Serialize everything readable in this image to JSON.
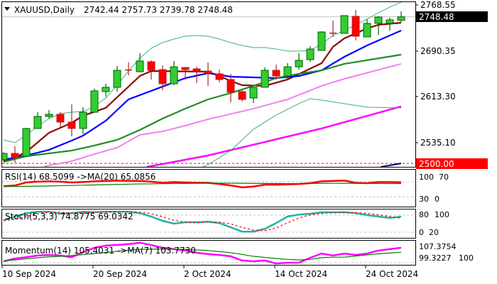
{
  "header": {
    "menu_icon": "triangle-down-icon",
    "title": "XAUUSD,Daily",
    "ohlc": "2742.44 2757.73 2739.78 2748.48"
  },
  "price_axis": {
    "ticks": [
      "2768.55",
      "2690.35",
      "2613.30",
      "2535.10"
    ],
    "current_price": "2748.48",
    "level_price": "2500.00"
  },
  "colors": {
    "bull": "#32CD32",
    "bear": "#FF0000",
    "ma_fast": "#8B0000",
    "ma_blue": "#0000FF",
    "ma_green": "#228B22",
    "ma_violet": "#EE82EE",
    "ma_magenta": "#FF00FF",
    "band": "#3CB371",
    "rsi": "#FF0000",
    "rsi_ma": "#008000",
    "stoch_main": "#20B2AA",
    "stoch_signal": "#FF0000",
    "momentum": "#FF00FF",
    "momentum_ma": "#008000",
    "level_line": "#FF0000"
  },
  "x_axis": {
    "labels": [
      {
        "bar": 0,
        "text": "10 Sep 2024"
      },
      {
        "bar": 8,
        "text": "20 Sep 2024"
      },
      {
        "bar": 16,
        "text": "2 Oct 2024"
      },
      {
        "bar": 24,
        "text": "14 Oct 2024"
      },
      {
        "bar": 32,
        "text": "24 Oct 2024"
      }
    ]
  },
  "chart_data": [
    {
      "type": "candlestick",
      "title": "XAUUSD,Daily",
      "ylim": [
        2490,
        2777
      ],
      "horizontal_levels": [
        2748.48,
        2500.0
      ],
      "ohlc": [
        [
          2506.2,
          2519.0,
          2504.0,
          2517.0
        ],
        [
          2517.0,
          2529.1,
          2501.4,
          2509.8
        ],
        [
          2512.2,
          2560.4,
          2511.0,
          2559.2
        ],
        [
          2559.2,
          2586.8,
          2559.0,
          2579.6
        ],
        [
          2579.6,
          2590.4,
          2576.0,
          2583.2
        ],
        [
          2583.2,
          2586.8,
          2560.4,
          2570.0
        ],
        [
          2570.0,
          2600.1,
          2545.9,
          2559.2
        ],
        [
          2559.2,
          2595.3,
          2549.6,
          2586.8
        ],
        [
          2586.8,
          2626.6,
          2586.0,
          2622.9
        ],
        [
          2621.7,
          2635.0,
          2613.3,
          2629.0
        ],
        [
          2629.0,
          2665.1,
          2621.7,
          2657.8
        ],
        [
          2658.2,
          2671.1,
          2649.4,
          2657.6
        ],
        [
          2655.4,
          2686.7,
          2655.0,
          2673.5
        ],
        [
          2672.3,
          2674.7,
          2642.2,
          2657.8
        ],
        [
          2659.0,
          2666.3,
          2624.1,
          2635.0
        ],
        [
          2635.0,
          2673.5,
          2632.6,
          2663.8
        ],
        [
          2662.6,
          2663.5,
          2642.2,
          2659.0
        ],
        [
          2660.2,
          2663.8,
          2636.2,
          2655.4
        ],
        [
          2656.6,
          2671.1,
          2631.4,
          2653.0
        ],
        [
          2651.8,
          2659.0,
          2637.4,
          2642.2
        ],
        [
          2642.2,
          2651.8,
          2603.7,
          2620.6
        ],
        [
          2621.7,
          2624.1,
          2604.9,
          2608.5
        ],
        [
          2610.9,
          2629.5,
          2602.5,
          2629.0
        ],
        [
          2629.0,
          2662.6,
          2628.5,
          2657.8
        ],
        [
          2657.8,
          2667.5,
          2642.2,
          2648.2
        ],
        [
          2648.2,
          2669.9,
          2642.2,
          2663.8
        ],
        [
          2663.8,
          2686.7,
          2659.0,
          2674.7
        ],
        [
          2675.9,
          2698.7,
          2672.3,
          2693.9
        ],
        [
          2691.5,
          2724.0,
          2691.0,
          2722.8
        ],
        [
          2720.8,
          2742.1,
          2714.4,
          2720.4
        ],
        [
          2720.4,
          2750.8,
          2720.0,
          2750.5
        ],
        [
          2749.3,
          2760.1,
          2708.4,
          2715.6
        ],
        [
          2714.4,
          2744.5,
          2714.0,
          2737.3
        ],
        [
          2737.3,
          2749.3,
          2718.0,
          2748.1
        ],
        [
          2737.3,
          2746.9,
          2725.2,
          2743.3
        ],
        [
          2742.44,
          2757.73,
          2739.78,
          2748.48
        ]
      ],
      "overlays": [
        {
          "color_key": "ma_fast",
          "width": 2.2,
          "points": [
            [
              0,
              2505
            ],
            [
              1,
              2509.8
            ],
            [
              2,
              2519.4
            ],
            [
              4,
              2551.9
            ],
            [
              6,
              2568.8
            ],
            [
              7,
              2580.8
            ],
            [
              9,
              2594.1
            ],
            [
              10,
              2612.1
            ],
            [
              12,
              2648.2
            ],
            [
              13,
              2656.6
            ],
            [
              18,
              2655.4
            ],
            [
              19,
              2648.2
            ],
            [
              20,
              2639.8
            ],
            [
              21,
              2632.6
            ],
            [
              23,
              2631.4
            ],
            [
              25,
              2642.2
            ],
            [
              28,
              2669.9
            ],
            [
              29,
              2697.5
            ],
            [
              30,
              2712
            ],
            [
              32,
              2728.8
            ],
            [
              33,
              2734.9
            ],
            [
              35,
              2738.5
            ]
          ]
        },
        {
          "color_key": "ma_blue",
          "width": 2.2,
          "points": [
            [
              0,
              2506.2
            ],
            [
              2,
              2513.4
            ],
            [
              4,
              2523
            ],
            [
              6,
              2538.7
            ],
            [
              7,
              2547.1
            ],
            [
              9,
              2572.4
            ],
            [
              11,
              2608.5
            ],
            [
              14,
              2630.2
            ],
            [
              16,
              2644.6
            ],
            [
              18,
              2653
            ],
            [
              20,
              2647
            ],
            [
              24,
              2644.6
            ],
            [
              26,
              2648.2
            ],
            [
              28,
              2657.8
            ],
            [
              30,
              2680.7
            ],
            [
              32,
              2699.9
            ],
            [
              35,
              2725.2
            ]
          ]
        },
        {
          "color_key": "ma_green",
          "width": 2.2,
          "points": [
            [
              0,
              2502.6
            ],
            [
              2,
              2512.2
            ],
            [
              6,
              2521.8
            ],
            [
              8,
              2530.3
            ],
            [
              10,
              2539.9
            ],
            [
              12,
              2556.8
            ],
            [
              14,
              2576
            ],
            [
              16,
              2592.8
            ],
            [
              18,
              2608.5
            ],
            [
              20,
              2619.3
            ],
            [
              22,
              2631.4
            ],
            [
              24,
              2644.6
            ],
            [
              26,
              2651.8
            ],
            [
              28,
              2657.8
            ],
            [
              30,
              2668.7
            ],
            [
              35,
              2684.3
            ]
          ]
        },
        {
          "color_key": "ma_violet",
          "width": 2,
          "points": [
            [
              3.6,
              2495
            ],
            [
              6,
              2503.8
            ],
            [
              8,
              2515.8
            ],
            [
              10,
              2526.7
            ],
            [
              12,
              2548.3
            ],
            [
              14,
              2554.3
            ],
            [
              16,
              2564
            ],
            [
              18,
              2574.8
            ],
            [
              22,
              2592.8
            ],
            [
              25,
              2608.5
            ],
            [
              28,
              2631.4
            ],
            [
              30,
              2643.4
            ],
            [
              35,
              2668.7
            ]
          ]
        },
        {
          "color_key": "ma_magenta",
          "width": 2.5,
          "points": [
            [
              12.6,
              2494
            ],
            [
              18,
              2513.4
            ],
            [
              28,
              2559.2
            ],
            [
              35,
              2596.5
            ]
          ]
        },
        {
          "color_key": "band",
          "width": 1,
          "points": [
            [
              0,
              2539.9
            ],
            [
              1,
              2535.1
            ],
            [
              2,
              2548.3
            ],
            [
              3,
              2562.8
            ],
            [
              4,
              2576
            ],
            [
              5,
              2584.4
            ],
            [
              6,
              2586.8
            ],
            [
              7,
              2588
            ],
            [
              8,
              2596.5
            ],
            [
              9,
              2610.9
            ],
            [
              10,
              2632.6
            ],
            [
              11,
              2656.6
            ],
            [
              12,
              2678.3
            ],
            [
              13,
              2695.1
            ],
            [
              14,
              2704.8
            ],
            [
              15,
              2710.8
            ],
            [
              16,
              2715.6
            ],
            [
              17,
              2716.8
            ],
            [
              18,
              2715.6
            ],
            [
              19,
              2710.8
            ],
            [
              20,
              2704.8
            ],
            [
              21,
              2700
            ],
            [
              22,
              2696.3
            ],
            [
              23,
              2696.3
            ],
            [
              24,
              2694
            ],
            [
              25,
              2690.3
            ],
            [
              26,
              2690.3
            ],
            [
              27,
              2691.5
            ],
            [
              28,
              2702.4
            ],
            [
              29,
              2716.8
            ],
            [
              30,
              2725.2
            ],
            [
              31,
              2734.9
            ],
            [
              32,
              2744.5
            ],
            [
              33,
              2755.3
            ],
            [
              34,
              2764.9
            ],
            [
              35,
              2773.4
            ]
          ]
        },
        {
          "color_key": "band",
          "width": 1,
          "points": [
            [
              17.5,
              2494
            ],
            [
              18,
              2497.8
            ],
            [
              20,
              2521.8
            ],
            [
              22,
              2557.9
            ],
            [
              24,
              2582
            ],
            [
              26,
              2601.3
            ],
            [
              27,
              2609.7
            ],
            [
              28,
              2607.3
            ],
            [
              30,
              2601.3
            ],
            [
              32,
              2595.3
            ],
            [
              35,
              2594.1
            ]
          ]
        },
        {
          "color_key": "ma_navy",
          "width": 2,
          "points": [
            [
              33.2,
              2494
            ],
            [
              35,
              2500
            ]
          ]
        }
      ]
    },
    {
      "type": "line",
      "title": "RSI(14) 68.5099  ->MA(20) 65.0856",
      "ylim": [
        0,
        100
      ],
      "levels": [
        70,
        30
      ],
      "tick_labels": [
        "100",
        "70",
        "30",
        "0"
      ],
      "series": [
        {
          "color_key": "rsi",
          "values": [
            58,
            60,
            68,
            70,
            71,
            70,
            68,
            69,
            71,
            72,
            73,
            72,
            72,
            70,
            67,
            69,
            68,
            67,
            67,
            64,
            60,
            55,
            57,
            62,
            62,
            63,
            64,
            66,
            71,
            72,
            73,
            67,
            66,
            69,
            69,
            68.51
          ]
        },
        {
          "color_key": "rsi_ma",
          "values": [
            57,
            57.3,
            57.6,
            58,
            58.7,
            59.3,
            60,
            60.7,
            61.3,
            62,
            62.7,
            63.3,
            64,
            64.3,
            64.7,
            65,
            65.3,
            65.7,
            66,
            66,
            66,
            65.8,
            65.6,
            65.4,
            65.3,
            65.2,
            65.2,
            65.3,
            65.5,
            65.7,
            65.8,
            65.6,
            65.4,
            65.2,
            65.1,
            65.09
          ]
        }
      ]
    },
    {
      "type": "line",
      "title": "Stoch(5,3,3) 74.8775 69.0342",
      "ylim": [
        0,
        100
      ],
      "levels": [
        80,
        20
      ],
      "tick_labels": [
        "80",
        "100",
        "0",
        "20"
      ],
      "series": [
        {
          "color_key": "stoch_main",
          "values": [
            62,
            75,
            87,
            92,
            92,
            85,
            87,
            92,
            90,
            92,
            92,
            92,
            87,
            75,
            60,
            50,
            55,
            55,
            57,
            52,
            37,
            22,
            22,
            32,
            52,
            75,
            82,
            85,
            90,
            90,
            90,
            87,
            80,
            75,
            70,
            74.88
          ],
          "dashed": false
        },
        {
          "color_key": "stoch_signal",
          "values": [
            60,
            66,
            75,
            85,
            90,
            90,
            88,
            88,
            90,
            91,
            92,
            92,
            90,
            85,
            74,
            62,
            55,
            53,
            56,
            55,
            49,
            37,
            27,
            25,
            35,
            53,
            70,
            81,
            86,
            88,
            90,
            89,
            86,
            81,
            75,
            69.03
          ],
          "dashed": true
        }
      ]
    },
    {
      "type": "line",
      "title": "Momentum(14) 105.4031  ->MA(7) 103.7730",
      "ylim": [
        99.3227,
        107.3754
      ],
      "levels": [
        100
      ],
      "tick_labels": [
        "107.3754",
        "99.3227",
        "100"
      ],
      "series": [
        {
          "color_key": "momentum",
          "values": [
            100.5,
            101.5,
            102,
            102.6,
            102.8,
            102.6,
            102,
            103.8,
            105.4,
            106.2,
            106.4,
            106.7,
            107.2,
            106.4,
            105.4,
            104.9,
            104.4,
            103.6,
            103.1,
            102.8,
            102.3,
            100.8,
            100.5,
            100.8,
            99.7,
            100,
            100,
            101.8,
            103.3,
            102.6,
            103.3,
            102.8,
            103.3,
            104.4,
            104.9,
            105.4
          ]
        },
        {
          "color_key": "momentum_ma",
          "values": [
            100.6,
            101,
            101.4,
            101.8,
            102.1,
            102.3,
            102.6,
            102.9,
            103.3,
            103.7,
            104.1,
            104.5,
            104.8,
            104.9,
            104.9,
            104.9,
            104.8,
            104.6,
            104.4,
            104,
            103.6,
            103,
            102.3,
            101.9,
            101.5,
            101.2,
            101,
            101.2,
            101.8,
            102,
            102,
            102.4,
            102.8,
            103.2,
            103.5,
            103.77
          ]
        }
      ]
    }
  ]
}
